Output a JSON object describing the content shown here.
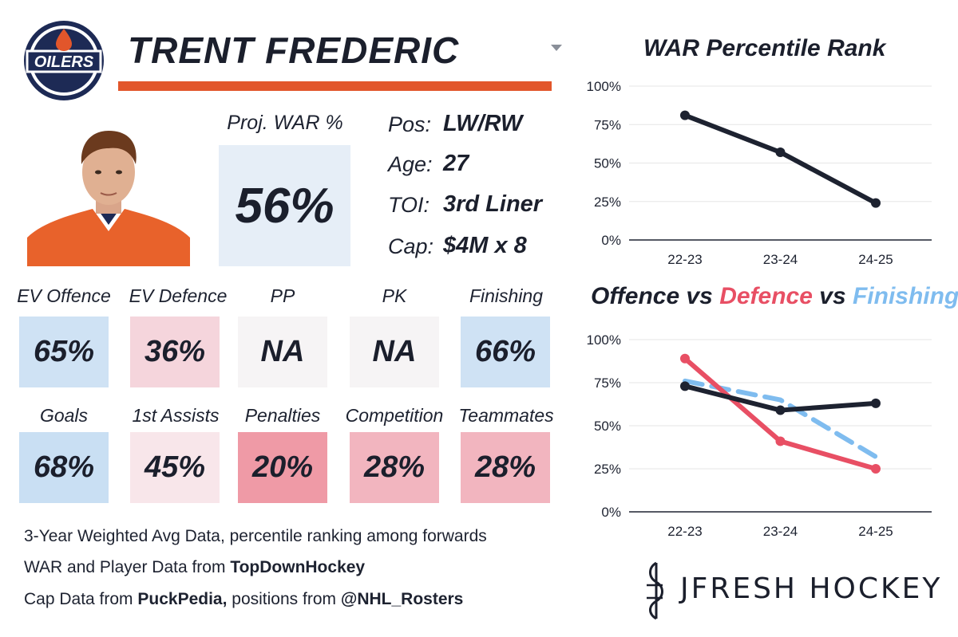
{
  "header": {
    "player_name": "TRENT FREDERIC",
    "team_logo": "OILERS"
  },
  "icons": {
    "logo": "oilers-logo-icon",
    "headshot": "player-headshot-icon",
    "caret": "caret-down-icon",
    "brand": "jfresh-logo-icon"
  },
  "colors": {
    "accent": "#e2562b",
    "navy": "#1d2230",
    "offence": "#1d2230",
    "defence": "#e84f64",
    "finishing": "#7fbcef"
  },
  "projection": {
    "label": "Proj. WAR %",
    "value": "56%",
    "color": "#e6eef7"
  },
  "info": [
    {
      "label": "Pos:",
      "value": "LW/RW"
    },
    {
      "label": "Age:",
      "value": "27"
    },
    {
      "label": "TOI:",
      "value": "3rd Liner"
    },
    {
      "label": "Cap:",
      "value": "$4M x 8"
    }
  ],
  "metrics": [
    {
      "label": "EV Offence",
      "value": "65%",
      "color": "#cfe2f4"
    },
    {
      "label": "EV Defence",
      "value": "36%",
      "color": "#f5d5dc"
    },
    {
      "label": "PP",
      "value": "NA",
      "color": "#f6f4f5"
    },
    {
      "label": "PK",
      "value": "NA",
      "color": "#f6f4f5"
    },
    {
      "label": "Finishing",
      "value": "66%",
      "color": "#cfe2f4"
    },
    {
      "label": "Goals",
      "value": "68%",
      "color": "#c9dff3"
    },
    {
      "label": "1st Assists",
      "value": "45%",
      "color": "#f8e6ea"
    },
    {
      "label": "Penalties",
      "value": "20%",
      "color": "#ef9aa6"
    },
    {
      "label": "Competition",
      "value": "28%",
      "color": "#f2b5bf"
    },
    {
      "label": "Teammates",
      "value": "28%",
      "color": "#f2b5bf"
    }
  ],
  "footer": {
    "line1": "3-Year Weighted Avg Data, percentile ranking among forwards",
    "line2_prefix": "WAR and Player Data from ",
    "line2_bold": "TopDownHockey",
    "line3_prefix": "Cap Data from ",
    "line3_bold": "PuckPedia,",
    "line3_middle": " positions from ",
    "line3_bold2": "@NHL_Rosters"
  },
  "brand": {
    "name": "JFRESH HOCKEY"
  },
  "chart_titles": {
    "war_title": "WAR Percentile Rank",
    "split_part1": "Offence",
    "split_vs1": " vs ",
    "split_part2": "Defence",
    "split_vs2": " vs ",
    "split_part3": "Finishing"
  },
  "chart_data": [
    {
      "type": "line",
      "title": "WAR Percentile Rank",
      "x": [
        "22-23",
        "23-24",
        "24-25"
      ],
      "ylim": [
        0,
        100
      ],
      "yticks": [
        "0%",
        "25%",
        "50%",
        "75%",
        "100%"
      ],
      "grid": true,
      "series": [
        {
          "values": [
            81,
            57,
            24
          ],
          "color": "#1d2230",
          "dashed": false
        }
      ]
    },
    {
      "type": "line",
      "title": "Offence vs Defence vs Finishing",
      "x": [
        "22-23",
        "23-24",
        "24-25"
      ],
      "ylim": [
        0,
        100
      ],
      "yticks": [
        "0%",
        "25%",
        "50%",
        "75%",
        "100%"
      ],
      "grid": true,
      "series": [
        {
          "name": "Finishing",
          "values": [
            76,
            65,
            32
          ],
          "color": "#7fbcef",
          "dashed": true
        },
        {
          "name": "Defence",
          "values": [
            89,
            41,
            25
          ],
          "color": "#e84f64",
          "dashed": false
        },
        {
          "name": "Offence",
          "values": [
            73,
            59,
            63
          ],
          "color": "#1d2230",
          "dashed": false
        }
      ]
    }
  ]
}
